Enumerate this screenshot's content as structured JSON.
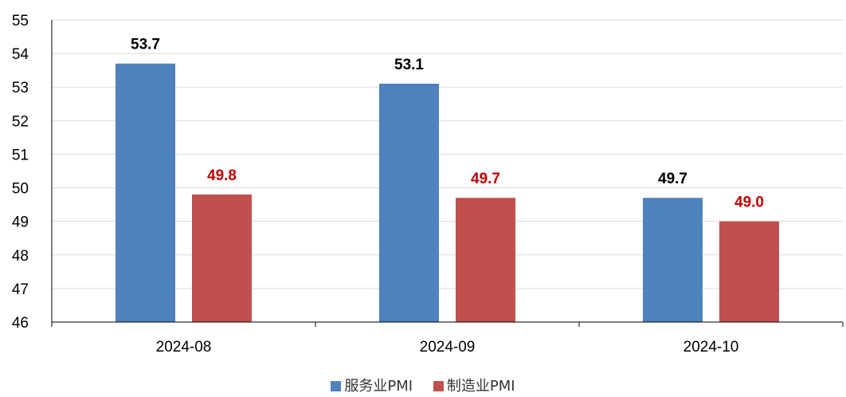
{
  "chart_data": {
    "type": "bar",
    "categories": [
      "2024-08",
      "2024-09",
      "2024-10"
    ],
    "series": [
      {
        "name": "服务业PMI",
        "values": [
          53.7,
          53.1,
          49.7
        ],
        "color": "#4F81BD",
        "label_color": "#000000"
      },
      {
        "name": "制造业PMI",
        "values": [
          49.8,
          49.7,
          49.0
        ],
        "color": "#C0504D",
        "label_color": "#C00000"
      }
    ],
    "ylim": [
      46,
      55
    ],
    "yticks": [
      46,
      47,
      48,
      49,
      50,
      51,
      52,
      53,
      54,
      55
    ],
    "grid": true,
    "legend_position": "bottom-center",
    "title": "",
    "xlabel": "",
    "ylabel": ""
  }
}
